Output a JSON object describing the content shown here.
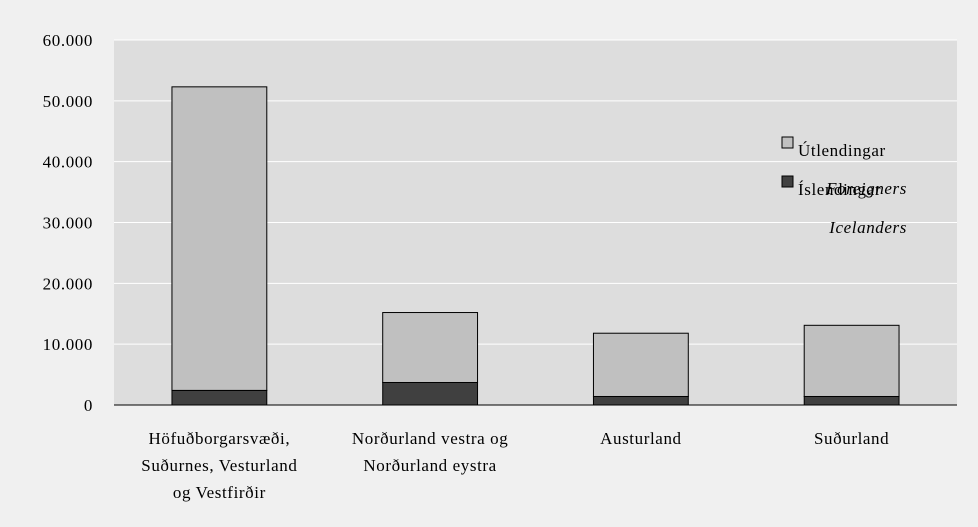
{
  "chart_data": {
    "type": "bar",
    "stacked": true,
    "categories": [
      [
        "Höfuðborgarsvæði,",
        "Suðurnes, Vesturland",
        "og Vestfirðir"
      ],
      [
        "Norðurland vestra og",
        "Norðurland eystra"
      ],
      [
        "Austurland"
      ],
      [
        "Suðurland"
      ]
    ],
    "series": [
      {
        "name": "Íslendingar",
        "name_en": "Icelanders",
        "color": "#404040",
        "values": [
          2400,
          3700,
          1400,
          1400
        ]
      },
      {
        "name": "Útlendingar",
        "name_en": "Foreigners",
        "color": "#c0c0c0",
        "values": [
          49900,
          11500,
          10400,
          11700
        ]
      }
    ],
    "legend_order": [
      1,
      0
    ],
    "ylim": [
      0,
      60000
    ],
    "yticks": [
      0,
      10000,
      20000,
      30000,
      40000,
      50000,
      60000
    ],
    "ytick_labels": [
      "0",
      "10.000",
      "20.000",
      "30.000",
      "40.000",
      "50.000",
      "60.000"
    ],
    "grid": true,
    "legend_position": "right",
    "plot_background": "#dddddd",
    "title": "",
    "xlabel": "",
    "ylabel": ""
  }
}
